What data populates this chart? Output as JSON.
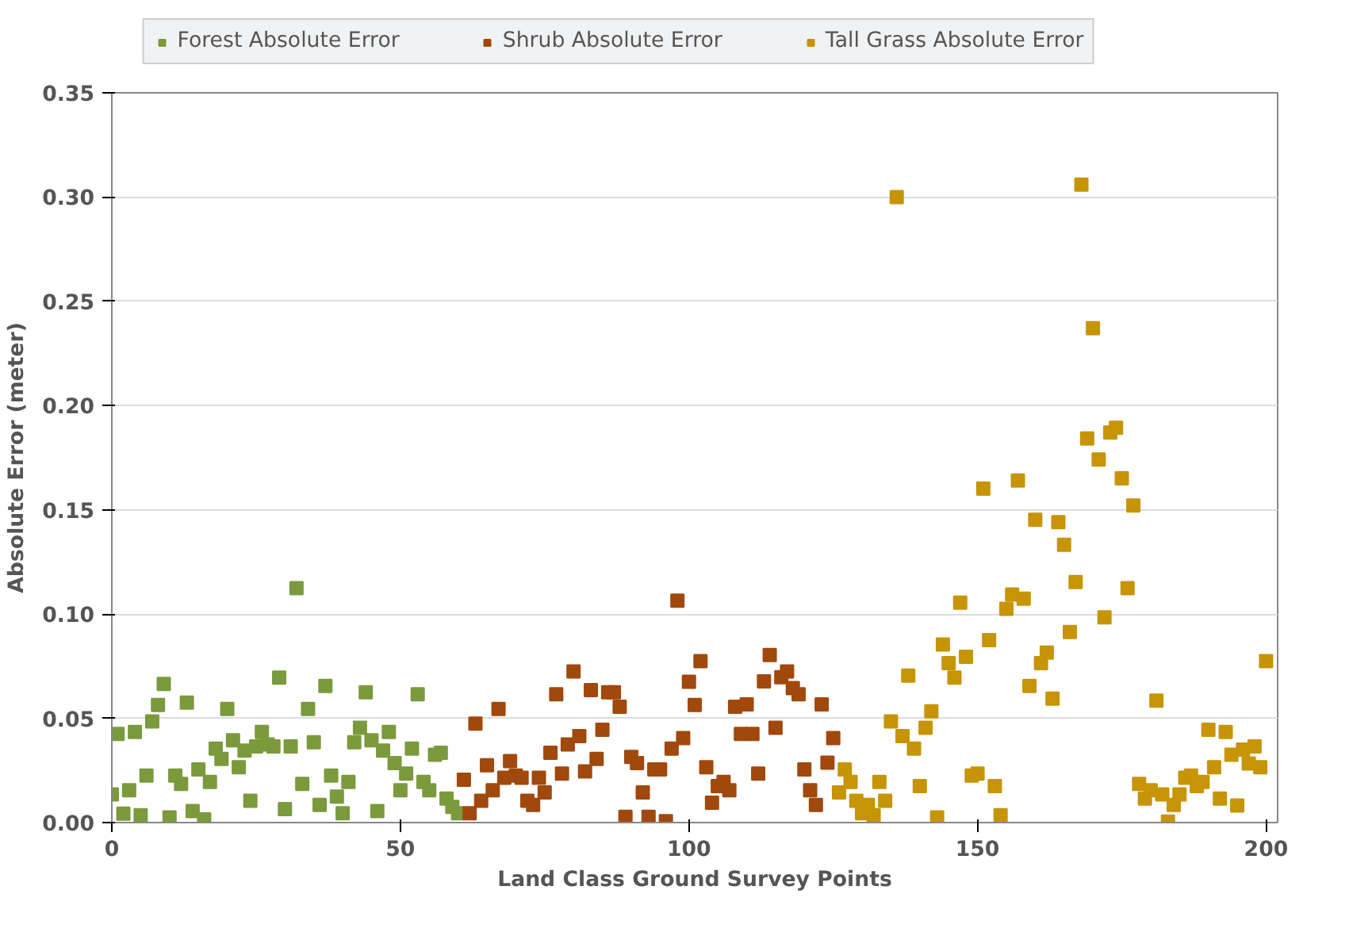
{
  "chart_data": {
    "type": "scatter",
    "xlabel": "Land Class Ground Survey Points",
    "ylabel": "Absolute Error (meter)",
    "xlim": [
      0,
      202
    ],
    "ylim": [
      0,
      0.35
    ],
    "xticks": [
      0,
      50,
      100,
      150,
      200
    ],
    "yticks": [
      {
        "value": 0,
        "label": "0.00"
      },
      {
        "value": 0.05,
        "label": "0.05"
      },
      {
        "value": 0.1,
        "label": "0.10"
      },
      {
        "value": 0.15,
        "label": "0.15"
      },
      {
        "value": 0.2,
        "label": "0.20"
      },
      {
        "value": 0.25,
        "label": "0.25"
      },
      {
        "value": 0.3,
        "label": "0.30"
      },
      {
        "value": 0.35,
        "label": "0.35"
      }
    ],
    "grid": "y",
    "legend": "top",
    "marker": "square",
    "series": [
      {
        "name": "Forest Absolute Error",
        "color": "#7b9a3c",
        "x": [
          0,
          1,
          2,
          3,
          4,
          5,
          6,
          7,
          8,
          9,
          10,
          11,
          12,
          13,
          14,
          15,
          16,
          17,
          18,
          19,
          20,
          21,
          22,
          23,
          24,
          25,
          26,
          27,
          28,
          29,
          30,
          31,
          32,
          33,
          34,
          35,
          36,
          37,
          38,
          39,
          40,
          41,
          42,
          43,
          44,
          45,
          46,
          47,
          48,
          49,
          50,
          51,
          52,
          53,
          54,
          55,
          56,
          57,
          58,
          59,
          60
        ],
        "values": [
          0.0135,
          0.0425,
          0.0043,
          0.0155,
          0.0435,
          0.0035,
          0.0225,
          0.0485,
          0.0564,
          0.0665,
          0.0025,
          0.0225,
          0.0185,
          0.0575,
          0.0055,
          0.0255,
          0.0015,
          0.0195,
          0.0355,
          0.0305,
          0.0545,
          0.0395,
          0.0265,
          0.0345,
          0.0105,
          0.0365,
          0.0435,
          0.0375,
          0.0365,
          0.0695,
          0.0065,
          0.0365,
          0.1124,
          0.0185,
          0.0545,
          0.0385,
          0.0085,
          0.0655,
          0.0225,
          0.0125,
          0.0045,
          0.0195,
          0.0385,
          0.0455,
          0.0625,
          0.0395,
          0.0055,
          0.0345,
          0.0435,
          0.0285,
          0.0155,
          0.0235,
          0.0355,
          0.0615,
          0.0195,
          0.0155,
          0.0325,
          0.0335,
          0.0115,
          0.0075,
          0.0045
        ]
      },
      {
        "name": "Shrub Absolute Error",
        "color": "#a1480d",
        "x": [
          61,
          62,
          63,
          64,
          65,
          66,
          67,
          68,
          69,
          70,
          71,
          72,
          73,
          74,
          75,
          76,
          77,
          78,
          79,
          80,
          81,
          82,
          83,
          84,
          85,
          86,
          87,
          88,
          89,
          90,
          91,
          92,
          93,
          94,
          95,
          96,
          97,
          98,
          99,
          100,
          101,
          102,
          103,
          104,
          105,
          106,
          107,
          108,
          109,
          110,
          111,
          112,
          113,
          114,
          115,
          116,
          117,
          118,
          119,
          120,
          121,
          122,
          123,
          124,
          125
        ],
        "values": [
          0.0205,
          0.0045,
          0.0475,
          0.0105,
          0.0275,
          0.0155,
          0.0545,
          0.0215,
          0.0295,
          0.0225,
          0.0215,
          0.0105,
          0.0085,
          0.0215,
          0.0145,
          0.0335,
          0.0615,
          0.0235,
          0.0375,
          0.0725,
          0.0415,
          0.0245,
          0.0635,
          0.0305,
          0.0445,
          0.0625,
          0.0625,
          0.0555,
          0.0028,
          0.0315,
          0.0285,
          0.0145,
          0.0028,
          0.0255,
          0.0255,
          0.0007,
          0.0355,
          0.1064,
          0.0405,
          0.0675,
          0.0564,
          0.0774,
          0.0265,
          0.0095,
          0.0175,
          0.0195,
          0.0155,
          0.0555,
          0.0425,
          0.0567,
          0.0425,
          0.0235,
          0.0677,
          0.0804,
          0.0455,
          0.0697,
          0.0725,
          0.0645,
          0.0615,
          0.0255,
          0.0155,
          0.0085,
          0.0567,
          0.0287,
          0.0405
        ]
      },
      {
        "name": "Tall Grass Absolute Error",
        "color": "#c79406",
        "x": [
          126,
          127,
          128,
          129,
          130,
          131,
          132,
          133,
          134,
          135,
          136,
          137,
          138,
          139,
          140,
          141,
          142,
          143,
          144,
          145,
          146,
          147,
          148,
          149,
          150,
          151,
          152,
          153,
          154,
          155,
          156,
          157,
          158,
          159,
          160,
          161,
          162,
          163,
          164,
          165,
          166,
          167,
          168,
          169,
          170,
          171,
          172,
          173,
          174,
          175,
          176,
          177,
          178,
          179,
          180,
          181,
          182,
          183,
          184,
          185,
          186,
          187,
          188,
          189,
          190,
          191,
          192,
          193,
          194,
          195,
          196,
          197,
          198,
          199,
          200
        ],
        "values": [
          0.0145,
          0.0255,
          0.0195,
          0.0105,
          0.0045,
          0.0085,
          0.0035,
          0.0195,
          0.0105,
          0.0485,
          0.3,
          0.0415,
          0.0705,
          0.0355,
          0.0175,
          0.0455,
          0.0534,
          0.0025,
          0.0854,
          0.0765,
          0.0695,
          0.1055,
          0.0795,
          0.0225,
          0.0235,
          0.1602,
          0.0875,
          0.0175,
          0.0035,
          0.1025,
          0.1094,
          0.1641,
          0.1074,
          0.0655,
          0.1452,
          0.0765,
          0.0815,
          0.0594,
          0.1441,
          0.1332,
          0.0914,
          0.1154,
          0.306,
          0.1842,
          0.2371,
          0.1741,
          0.0984,
          0.1871,
          0.1894,
          0.1651,
          0.1124,
          0.1521,
          0.0185,
          0.0115,
          0.0155,
          0.0585,
          0.0135,
          0.0005,
          0.0085,
          0.0135,
          0.0215,
          0.0225,
          0.0175,
          0.0195,
          0.0445,
          0.0265,
          0.0115,
          0.0435,
          0.0325,
          0.0082,
          0.035,
          0.0283,
          0.0365,
          0.0265,
          0.0774
        ]
      }
    ]
  }
}
